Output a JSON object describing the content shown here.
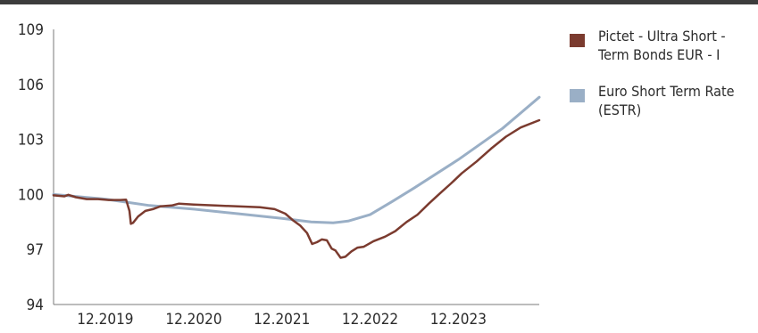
{
  "chart_data": {
    "type": "line",
    "title": "",
    "xlabel": "",
    "ylabel": "",
    "ylim": [
      94,
      109
    ],
    "yticks": [
      94,
      97,
      100,
      103,
      106,
      109
    ],
    "xlim": [
      "2019-05-01",
      "2024-10-31"
    ],
    "xticks": [
      {
        "label": "12.2019",
        "date": "2019-12-01"
      },
      {
        "label": "12.2020",
        "date": "2020-12-01"
      },
      {
        "label": "12.2021",
        "date": "2021-12-01"
      },
      {
        "label": "12.2022",
        "date": "2022-12-01"
      },
      {
        "label": "12.2023",
        "date": "2023-12-01"
      }
    ],
    "grid": false,
    "legend_position": "right",
    "series": [
      {
        "name": "Euro Short Term Rate (ESTR)",
        "color": "#9aafc6",
        "points": [
          [
            "2019-05-01",
            100.0
          ],
          [
            "2019-12-01",
            99.75
          ],
          [
            "2020-06-01",
            99.4
          ],
          [
            "2020-12-01",
            99.2
          ],
          [
            "2021-06-01",
            98.95
          ],
          [
            "2021-12-01",
            98.7
          ],
          [
            "2022-04-01",
            98.5
          ],
          [
            "2022-07-01",
            98.45
          ],
          [
            "2022-09-01",
            98.55
          ],
          [
            "2022-12-01",
            98.9
          ],
          [
            "2023-03-01",
            99.6
          ],
          [
            "2023-06-01",
            100.35
          ],
          [
            "2023-12-01",
            101.9
          ],
          [
            "2024-06-01",
            103.6
          ],
          [
            "2024-10-31",
            105.3
          ]
        ]
      },
      {
        "name": "Pictet - Ultra Short -Term Bonds EUR - I",
        "color": "#7b3b2f",
        "points": [
          [
            "2019-05-01",
            99.95
          ],
          [
            "2019-06-15",
            99.9
          ],
          [
            "2019-07-01",
            99.98
          ],
          [
            "2019-08-01",
            99.85
          ],
          [
            "2019-09-15",
            99.75
          ],
          [
            "2019-11-01",
            99.75
          ],
          [
            "2019-12-15",
            99.7
          ],
          [
            "2020-02-01",
            99.7
          ],
          [
            "2020-02-25",
            99.72
          ],
          [
            "2020-03-10",
            99.1
          ],
          [
            "2020-03-16",
            98.4
          ],
          [
            "2020-03-25",
            98.45
          ],
          [
            "2020-04-15",
            98.8
          ],
          [
            "2020-05-15",
            99.1
          ],
          [
            "2020-06-15",
            99.2
          ],
          [
            "2020-07-15",
            99.35
          ],
          [
            "2020-09-01",
            99.4
          ],
          [
            "2020-10-01",
            99.5
          ],
          [
            "2020-12-01",
            99.45
          ],
          [
            "2021-03-01",
            99.4
          ],
          [
            "2021-06-01",
            99.35
          ],
          [
            "2021-09-01",
            99.3
          ],
          [
            "2021-11-01",
            99.2
          ],
          [
            "2021-12-15",
            98.95
          ],
          [
            "2022-01-15",
            98.6
          ],
          [
            "2022-02-15",
            98.3
          ],
          [
            "2022-03-15",
            97.9
          ],
          [
            "2022-04-05",
            97.3
          ],
          [
            "2022-04-25",
            97.4
          ],
          [
            "2022-05-15",
            97.55
          ],
          [
            "2022-06-05",
            97.5
          ],
          [
            "2022-06-25",
            97.05
          ],
          [
            "2022-07-10",
            96.95
          ],
          [
            "2022-08-01",
            96.55
          ],
          [
            "2022-08-20",
            96.6
          ],
          [
            "2022-09-15",
            96.9
          ],
          [
            "2022-10-10",
            97.1
          ],
          [
            "2022-11-05",
            97.15
          ],
          [
            "2022-12-15",
            97.45
          ],
          [
            "2023-02-01",
            97.7
          ],
          [
            "2023-03-15",
            98.0
          ],
          [
            "2023-05-01",
            98.5
          ],
          [
            "2023-06-15",
            98.9
          ],
          [
            "2023-08-01",
            99.5
          ],
          [
            "2023-09-15",
            100.05
          ],
          [
            "2023-11-01",
            100.6
          ],
          [
            "2023-12-15",
            101.15
          ],
          [
            "2024-02-15",
            101.8
          ],
          [
            "2024-04-15",
            102.5
          ],
          [
            "2024-06-15",
            103.15
          ],
          [
            "2024-08-15",
            103.65
          ],
          [
            "2024-10-31",
            104.05
          ]
        ]
      }
    ]
  }
}
